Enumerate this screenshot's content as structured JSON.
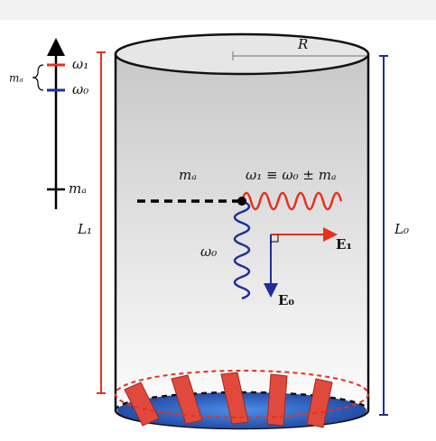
{
  "axis": {
    "top_label": "ω₁",
    "mid_label": "ω₀",
    "bottom_label": "mₐ",
    "brace_label": "mₐ"
  },
  "cylinder": {
    "radius_label": "R",
    "left_length_label": "L₁",
    "right_length_label": "L₀"
  },
  "interaction": {
    "axion_label": "mₐ",
    "photon_out_label": "ω₁ ≡ ω₀ ± mₐ",
    "photon_in_label": "ω₀",
    "field_1_label": "E₁",
    "field_0_label": "E₀"
  }
}
